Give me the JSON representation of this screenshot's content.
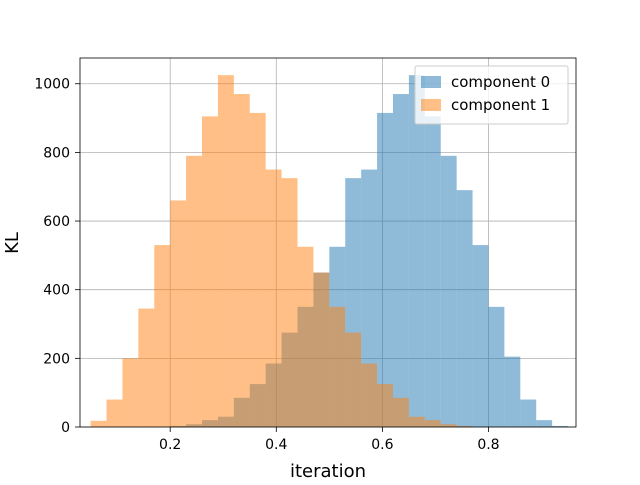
{
  "chart_data": {
    "type": "bar",
    "title": "",
    "xlabel": "iteration",
    "ylabel": "KL",
    "xlim": [
      0.03,
      0.965
    ],
    "ylim": [
      0,
      1075
    ],
    "xticks": [
      0.2,
      0.4,
      0.6,
      0.8
    ],
    "xtick_labels": [
      "0.2",
      "0.4",
      "0.6",
      "0.8"
    ],
    "yticks": [
      0,
      200,
      400,
      600,
      800,
      1000
    ],
    "ytick_labels": [
      "0",
      "200",
      "400",
      "600",
      "800",
      "1000"
    ],
    "grid": true,
    "legend_position": "top-right",
    "series": [
      {
        "name": "component 0",
        "color": "#1f77b4",
        "opacity": 0.5,
        "bin_edges": [
          0.2,
          0.23,
          0.26,
          0.29,
          0.32,
          0.35,
          0.38,
          0.41,
          0.44,
          0.47,
          0.5,
          0.53,
          0.56,
          0.59,
          0.62,
          0.65,
          0.68,
          0.71,
          0.74,
          0.77,
          0.8,
          0.83,
          0.86,
          0.89,
          0.92,
          0.95
        ],
        "counts": [
          3,
          8,
          20,
          30,
          85,
          125,
          185,
          275,
          350,
          450,
          525,
          725,
          750,
          915,
          970,
          1025,
          905,
          790,
          690,
          530,
          350,
          205,
          80,
          20,
          3
        ]
      },
      {
        "name": "component 1",
        "color": "#ff7f0e",
        "opacity": 0.5,
        "bin_edges": [
          0.05,
          0.08,
          0.11,
          0.14,
          0.17,
          0.2,
          0.23,
          0.26,
          0.29,
          0.32,
          0.35,
          0.38,
          0.41,
          0.44,
          0.47,
          0.5,
          0.53,
          0.56,
          0.59,
          0.62,
          0.65,
          0.68,
          0.71,
          0.74,
          0.77,
          0.8
        ],
        "counts": [
          18,
          80,
          200,
          345,
          530,
          660,
          790,
          905,
          1025,
          970,
          915,
          750,
          725,
          525,
          450,
          350,
          275,
          185,
          125,
          85,
          30,
          20,
          8,
          3,
          0
        ]
      }
    ]
  }
}
